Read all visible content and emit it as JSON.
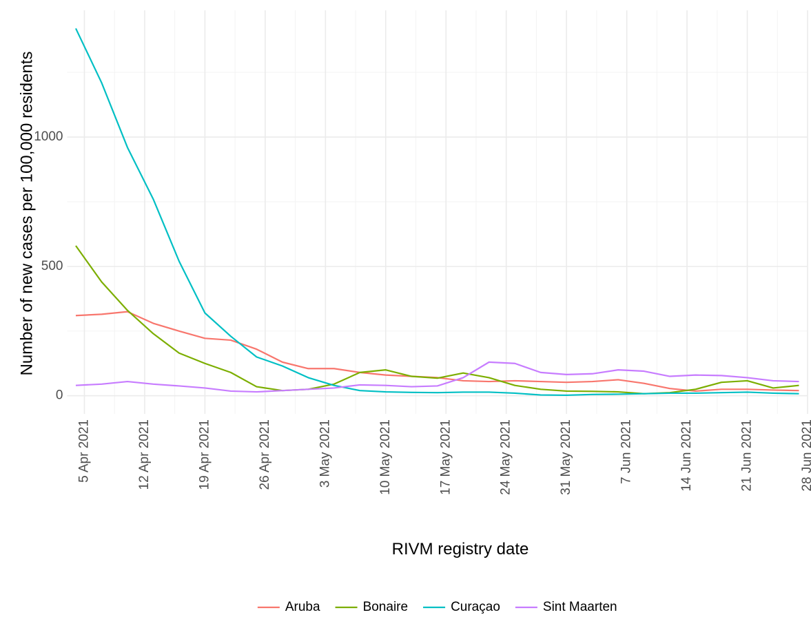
{
  "chart_data": {
    "type": "line",
    "x_label": "RIVM registry date",
    "y_label": "Number of new cases per 100,000 residents",
    "x": [
      "2021-04-04",
      "2021-04-07",
      "2021-04-10",
      "2021-04-13",
      "2021-04-16",
      "2021-04-19",
      "2021-04-22",
      "2021-04-25",
      "2021-04-28",
      "2021-05-01",
      "2021-05-04",
      "2021-05-07",
      "2021-05-10",
      "2021-05-13",
      "2021-05-16",
      "2021-05-19",
      "2021-05-22",
      "2021-05-25",
      "2021-05-28",
      "2021-05-31",
      "2021-06-03",
      "2021-06-06",
      "2021-06-09",
      "2021-06-12",
      "2021-06-15",
      "2021-06-18",
      "2021-06-21",
      "2021-06-24",
      "2021-06-27"
    ],
    "series": [
      {
        "name": "Aruba",
        "color": "#F8766D",
        "values": [
          310,
          315,
          325,
          280,
          250,
          222,
          215,
          180,
          130,
          105,
          105,
          90,
          80,
          75,
          70,
          58,
          55,
          58,
          55,
          52,
          55,
          62,
          48,
          28,
          18,
          25,
          25,
          22,
          20
        ]
      },
      {
        "name": "Bonaire",
        "color": "#7CAE00",
        "values": [
          580,
          440,
          330,
          240,
          165,
          125,
          90,
          35,
          20,
          25,
          45,
          90,
          100,
          75,
          68,
          88,
          70,
          40,
          25,
          18,
          17,
          15,
          8,
          12,
          25,
          52,
          58,
          30,
          40
        ]
      },
      {
        "name": "Curaçao",
        "color": "#00BFC4",
        "values": [
          1420,
          1210,
          960,
          760,
          520,
          320,
          230,
          150,
          115,
          70,
          40,
          20,
          15,
          13,
          12,
          14,
          14,
          10,
          3,
          2,
          5,
          6,
          8,
          10,
          10,
          12,
          14,
          10,
          8
        ]
      },
      {
        "name": "Sint Maarten",
        "color": "#C77CFF",
        "values": [
          40,
          45,
          55,
          45,
          38,
          30,
          18,
          15,
          20,
          25,
          30,
          42,
          40,
          35,
          38,
          70,
          130,
          125,
          90,
          82,
          85,
          100,
          95,
          75,
          80,
          78,
          70,
          58,
          55
        ]
      }
    ],
    "xlim": [
      "2021-04-03",
      "2021-06-28"
    ],
    "xticks": [
      {
        "value": "2021-04-05",
        "label": "5 Apr 2021"
      },
      {
        "value": "2021-04-12",
        "label": "12 Apr 2021"
      },
      {
        "value": "2021-04-19",
        "label": "19 Apr 2021"
      },
      {
        "value": "2021-04-26",
        "label": "26 Apr 2021"
      },
      {
        "value": "2021-05-03",
        "label": "3 May 2021"
      },
      {
        "value": "2021-05-10",
        "label": "10 May 2021"
      },
      {
        "value": "2021-05-17",
        "label": "17 May 2021"
      },
      {
        "value": "2021-05-24",
        "label": "24 May 2021"
      },
      {
        "value": "2021-05-31",
        "label": "31 May 2021"
      },
      {
        "value": "2021-06-07",
        "label": "7 Jun 2021"
      },
      {
        "value": "2021-06-14",
        "label": "14 Jun 2021"
      },
      {
        "value": "2021-06-21",
        "label": "21 Jun 2021"
      },
      {
        "value": "2021-06-28",
        "label": "28 Jun 2021"
      }
    ],
    "ylim": [
      -70,
      1490
    ],
    "yticks": [
      0,
      500,
      1000
    ],
    "grid": true,
    "legend": "bottom"
  }
}
